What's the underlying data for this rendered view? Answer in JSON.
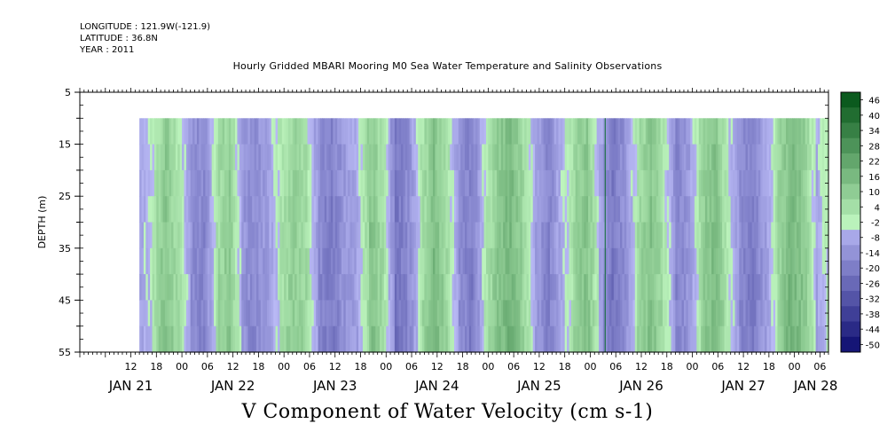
{
  "header": {
    "longitude": "LONGITUDE : 121.9W(-121.9)",
    "latitude": "LATITUDE : 36.8N",
    "year": "YEAR : 2011"
  },
  "chart_data": {
    "type": "heatmap",
    "title": "Hourly Gridded MBARI Mooring M0 Sea Water Temperature and Salinity Observations",
    "bottom_title": "V Component of Water Velocity (cm s-1)",
    "ylabel": "DEPTH (m)",
    "yticks": [
      5,
      15,
      25,
      35,
      45,
      55
    ],
    "ylim": [
      5,
      55
    ],
    "data_depth_range": [
      10,
      55
    ],
    "x_hour_ticks": [
      "12",
      "18",
      "00",
      "06",
      "12",
      "18",
      "00",
      "06",
      "12",
      "18",
      "00",
      "06",
      "12",
      "18",
      "00",
      "06",
      "12",
      "18",
      "00",
      "06",
      "12",
      "18",
      "00",
      "06",
      "12",
      "18",
      "00",
      "06"
    ],
    "x_day_labels": [
      "JAN 21",
      "JAN 22",
      "JAN 23",
      "JAN 24",
      "JAN 25",
      "JAN 26",
      "JAN 27",
      "JAN 28"
    ],
    "xlim_hours": [
      0,
      176
    ],
    "data_start_hour": 14,
    "colorbar": {
      "levels": [
        46,
        40,
        34,
        28,
        22,
        16,
        10,
        4,
        -2,
        -8,
        -14,
        -20,
        -26,
        -32,
        -38,
        -44,
        -50
      ],
      "range": [
        -50,
        52
      ]
    },
    "time_bands": [
      {
        "t": 14,
        "v": -4
      },
      {
        "t": 17,
        "v": 2
      },
      {
        "t": 20,
        "v": 14
      },
      {
        "t": 23,
        "v": 4
      },
      {
        "t": 26,
        "v": -10
      },
      {
        "t": 29,
        "v": -14
      },
      {
        "t": 32,
        "v": 6
      },
      {
        "t": 35,
        "v": 12
      },
      {
        "t": 38,
        "v": -8
      },
      {
        "t": 41,
        "v": -12
      },
      {
        "t": 44,
        "v": -6
      },
      {
        "t": 47,
        "v": 4
      },
      {
        "t": 50,
        "v": 10
      },
      {
        "t": 53,
        "v": 6
      },
      {
        "t": 56,
        "v": -12
      },
      {
        "t": 59,
        "v": -16
      },
      {
        "t": 62,
        "v": -8
      },
      {
        "t": 65,
        "v": -4
      },
      {
        "t": 68,
        "v": 14
      },
      {
        "t": 71,
        "v": 6
      },
      {
        "t": 74,
        "v": -18
      },
      {
        "t": 77,
        "v": -12
      },
      {
        "t": 80,
        "v": 4
      },
      {
        "t": 83,
        "v": 16
      },
      {
        "t": 86,
        "v": 6
      },
      {
        "t": 89,
        "v": -10
      },
      {
        "t": 92,
        "v": -16
      },
      {
        "t": 95,
        "v": 2
      },
      {
        "t": 98,
        "v": 12
      },
      {
        "t": 101,
        "v": 18
      },
      {
        "t": 104,
        "v": 8
      },
      {
        "t": 107,
        "v": -6
      },
      {
        "t": 110,
        "v": -14
      },
      {
        "t": 113,
        "v": -2
      },
      {
        "t": 116,
        "v": 8
      },
      {
        "t": 119,
        "v": 14
      },
      {
        "t": 122,
        "v": -4
      },
      {
        "t": 125,
        "v": -18
      },
      {
        "t": 128,
        "v": -10
      },
      {
        "t": 131,
        "v": 6
      },
      {
        "t": 134,
        "v": 14
      },
      {
        "t": 137,
        "v": 4
      },
      {
        "t": 140,
        "v": -14
      },
      {
        "t": 143,
        "v": -8
      },
      {
        "t": 146,
        "v": 10
      },
      {
        "t": 149,
        "v": 16
      },
      {
        "t": 152,
        "v": 2
      },
      {
        "t": 155,
        "v": -12
      },
      {
        "t": 158,
        "v": -16
      },
      {
        "t": 161,
        "v": -6
      },
      {
        "t": 164,
        "v": 8
      },
      {
        "t": 167,
        "v": 18
      },
      {
        "t": 170,
        "v": 12
      },
      {
        "t": 173,
        "v": -4
      },
      {
        "t": 176,
        "v": 4
      }
    ],
    "depth_profile_note_hidden": true
  }
}
